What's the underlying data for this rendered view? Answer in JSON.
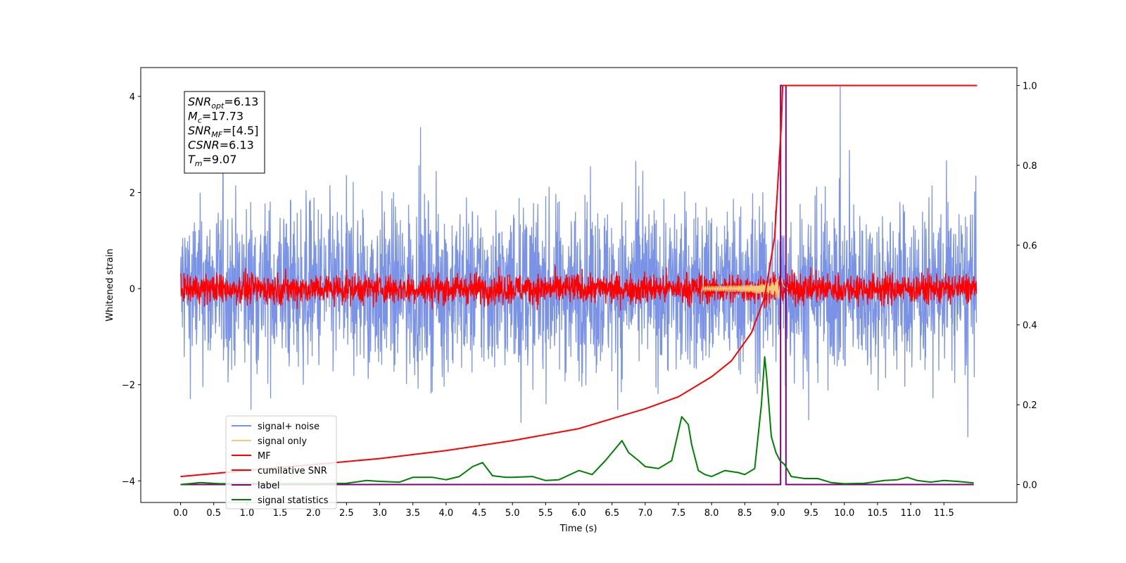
{
  "chart_data": {
    "type": "line",
    "xlabel": "Time (s)",
    "ylabel_left": "Whitened strain",
    "ylabel_right": "",
    "xlim": [
      -0.6,
      12.6
    ],
    "ylim_left": [
      -4.45,
      4.6
    ],
    "ylim_right": [
      -0.045,
      1.045
    ],
    "x_ticks": [
      "0.0",
      "0.5",
      "1.0",
      "1.5",
      "2.0",
      "2.5",
      "3.0",
      "3.5",
      "4.0",
      "4.5",
      "5.0",
      "5.5",
      "6.0",
      "6.5",
      "7.0",
      "7.5",
      "8.0",
      "8.5",
      "9.0",
      "9.5",
      "10.0",
      "10.5",
      "11.0",
      "11.5"
    ],
    "y_ticks_left": [
      "−4",
      "−2",
      "0",
      "2",
      "4"
    ],
    "y_ticks_right": [
      "0.0",
      "0.2",
      "0.4",
      "0.6",
      "0.8",
      "1.0"
    ],
    "grid": false,
    "legend_position": "lower-left",
    "annotation": {
      "lines": [
        {
          "base": "SNR",
          "sub": "opt",
          "value": "=6.13"
        },
        {
          "base": "M",
          "sub": "c",
          "value": "=17.73"
        },
        {
          "base": "SNR",
          "sub": "MF",
          "value": "=[4.5]"
        },
        {
          "base": "CSNR",
          "sub": "",
          "value": "=6.13"
        },
        {
          "base": "T",
          "sub": "m",
          "value": "=9.07"
        }
      ]
    },
    "series": [
      {
        "name": "signal+ noise",
        "color": "#7b93e6",
        "axis": "left",
        "kind": "noise",
        "amplitude_range": [
          -3.6,
          4.2
        ]
      },
      {
        "name": "signal only",
        "color": "#f5c97a",
        "axis": "left",
        "kind": "chirp",
        "peak_time": 9.05,
        "peak_amplitude": 0.35
      },
      {
        "name": "MF",
        "color": "#ff0000",
        "axis": "left",
        "kind": "noise",
        "amplitude_range": [
          -0.45,
          1.0
        ]
      },
      {
        "name": "cumilative SNR",
        "color": "#ff0000",
        "axis": "right",
        "x": [
          0.0,
          1.0,
          2.0,
          3.0,
          4.0,
          5.0,
          6.0,
          7.0,
          7.5,
          8.0,
          8.3,
          8.6,
          8.8,
          8.95,
          9.05,
          9.07,
          12.0
        ],
        "y": [
          0.02,
          0.035,
          0.05,
          0.065,
          0.085,
          0.11,
          0.14,
          0.19,
          0.22,
          0.27,
          0.31,
          0.38,
          0.47,
          0.62,
          0.9,
          1.0,
          1.0
        ]
      },
      {
        "name": "label",
        "color": "#800080",
        "axis": "right",
        "x": [
          0.0,
          9.04,
          9.04,
          9.12,
          9.12,
          11.95
        ],
        "y": [
          0.0,
          0.0,
          1.0,
          1.0,
          0.0,
          0.0
        ]
      },
      {
        "name": "signal statistics",
        "color": "#008000",
        "axis": "right",
        "x": [
          0.0,
          0.3,
          0.6,
          1.0,
          1.5,
          2.0,
          2.5,
          2.8,
          3.0,
          3.3,
          3.5,
          3.8,
          4.0,
          4.2,
          4.4,
          4.55,
          4.7,
          4.9,
          5.0,
          5.3,
          5.5,
          5.7,
          6.0,
          6.2,
          6.4,
          6.55,
          6.65,
          6.75,
          6.9,
          7.0,
          7.2,
          7.4,
          7.55,
          7.65,
          7.7,
          7.8,
          7.9,
          8.0,
          8.2,
          8.4,
          8.5,
          8.65,
          8.75,
          8.8,
          8.83,
          8.9,
          8.97,
          9.03,
          9.1,
          9.2,
          9.4,
          9.6,
          9.8,
          10.0,
          10.3,
          10.6,
          10.8,
          10.95,
          11.1,
          11.3,
          11.5,
          11.7,
          11.95
        ],
        "y": [
          0.0,
          0.005,
          0.002,
          0.003,
          0.002,
          0.002,
          0.003,
          0.01,
          0.008,
          0.006,
          0.018,
          0.018,
          0.012,
          0.02,
          0.045,
          0.055,
          0.022,
          0.018,
          0.018,
          0.02,
          0.01,
          0.012,
          0.035,
          0.025,
          0.06,
          0.09,
          0.11,
          0.08,
          0.06,
          0.045,
          0.04,
          0.06,
          0.17,
          0.15,
          0.1,
          0.035,
          0.025,
          0.02,
          0.035,
          0.03,
          0.025,
          0.04,
          0.2,
          0.32,
          0.27,
          0.12,
          0.08,
          0.06,
          0.05,
          0.02,
          0.015,
          0.015,
          0.005,
          0.002,
          0.003,
          0.01,
          0.012,
          0.018,
          0.01,
          0.006,
          0.01,
          0.008,
          0.004
        ]
      }
    ]
  }
}
